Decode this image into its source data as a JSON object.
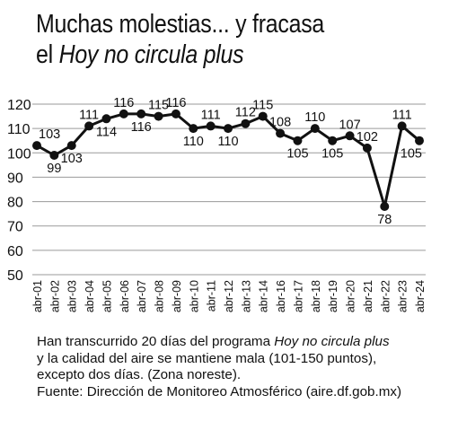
{
  "header": {
    "title_line1": "Muchas molestias... y fracasa",
    "title_line2_pre": "el ",
    "title_line2_em": "Hoy no circula plus"
  },
  "chart_data": {
    "type": "line",
    "title": "",
    "xlabel": "",
    "ylabel": "",
    "ylim": [
      50,
      120
    ],
    "yticks": [
      50,
      60,
      70,
      80,
      90,
      100,
      110,
      120
    ],
    "grid": true,
    "legend": "none",
    "categories": [
      "abr-01",
      "abr-02",
      "abr-03",
      "abr-04",
      "abr-05",
      "abr-06",
      "abr-07",
      "abr-08",
      "abr-09",
      "abr-10",
      "abr-11",
      "abr-12",
      "abr-13",
      "abr-14",
      "abr-16",
      "abr-17",
      "abr-18",
      "abr-19",
      "abr-20",
      "abr-21",
      "abr-22",
      "abr-23",
      "abr-24"
    ],
    "series": [
      {
        "name": "",
        "values": [
          103,
          99,
          103,
          111,
          114,
          116,
          116,
          115,
          116,
          110,
          111,
          110,
          112,
          115,
          108,
          105,
          110,
          105,
          107,
          102,
          78,
          111,
          105
        ]
      }
    ],
    "label_position": [
      "above",
      "below",
      "below",
      "above",
      "below",
      "above",
      "below",
      "above",
      "above",
      "below",
      "above",
      "below",
      "above",
      "above",
      "above",
      "below",
      "above",
      "below",
      "above",
      "above",
      "below",
      "above",
      "below"
    ]
  },
  "caption": {
    "line1_pre": "Han transcurrido 20 días del programa ",
    "line1_em": "Hoy no circula plus",
    "line2": "y la calidad del aire se mantiene mala (101-150 puntos),",
    "line3": "excepto dos días. (Zona noreste).",
    "line4": "Fuente: Dirección de Monitoreo Atmosférico (aire.df.gob.mx)"
  },
  "colors": {
    "line": "#111111",
    "grid": "#9a9a9a",
    "text": "#111111"
  }
}
